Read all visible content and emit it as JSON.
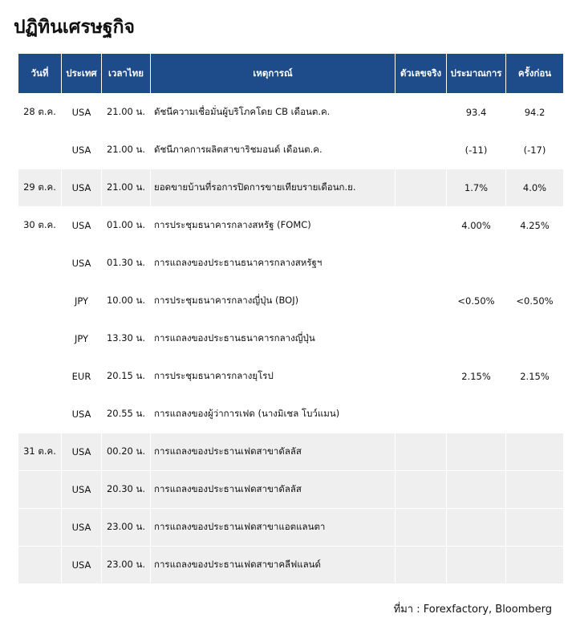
{
  "title": "ปฏิทินเศรษฐกิจ",
  "table": {
    "headers": [
      "วันที่",
      "ประเทศ",
      "เวลาไทย",
      "เหตุการณ์",
      "ตัวเลขจริง",
      "ประมาณการ",
      "ครั้งก่อน"
    ],
    "rows": [
      {
        "date": "28 ต.ค.",
        "country": "USA",
        "time": "21.00 น.",
        "event": "ดัชนีความเชื่อมั่นผู้บริโภคโดย CB เดือนต.ค.",
        "forecast": "93.4",
        "previous": "94.2"
      },
      {
        "country": "USA",
        "time": "21.00 น.",
        "event": "ดัชนีภาคการผลิตสาขาริชมอนด์ เดือนต.ค.",
        "forecast": "(-11)",
        "previous": "(-17)"
      },
      {
        "date": "29 ต.ค.",
        "country": "USA",
        "time": "21.00 น.",
        "event": "ยอดขายบ้านที่รอการปิดการขายเทียบรายเดือนก.ย.",
        "forecast": "1.7%",
        "previous": "4.0%"
      },
      {
        "date": "30 ต.ค.",
        "country": "USA",
        "time": "01.00 น.",
        "event": "การประชุมธนาคารกลางสหรัฐ (FOMC)",
        "forecast": "4.00%",
        "previous": "4.25%"
      },
      {
        "country": "USA",
        "time": "01.30 น.",
        "event": "การแถลงของประธานธนาคารกลางสหรัฐฯ"
      },
      {
        "country": "JPY",
        "time": "10.00 น.",
        "event": "การประชุมธนาคารกลางญี่ปุ่น (BOJ)",
        "forecast": "<0.50%",
        "previous": "<0.50%"
      },
      {
        "country": "JPY",
        "time": "13.30 น.",
        "event": "การแถลงของประธานธนาคารกลางญี่ปุ่น"
      },
      {
        "country": "EUR",
        "time": "20.15 น.",
        "event": "การประชุมธนาคารกลางยุโรป",
        "forecast": "2.15%",
        "previous": "2.15%"
      },
      {
        "country": "USA",
        "time": "20.55 น.",
        "event": "การแถลงของผู้ว่าการเฟด (นางมิเชล โบว์แมน)"
      },
      {
        "date": "31 ต.ค.",
        "country": "USA",
        "time": "00.20 น.",
        "event": "การแถลงของประธานเฟดสาขาดัลลัส"
      },
      {
        "country": "USA",
        "time": "20.30 น.",
        "event": "การแถลงของประธานเฟดสาขาดัลลัส"
      },
      {
        "country": "USA",
        "time": "23.00 น.",
        "event": "การแถลงของประธานเฟดสาขาแอตแลนตา"
      },
      {
        "country": "USA",
        "time": "23.00 น.",
        "event": "การแถลงของประธานเฟดสาขาคลีฟแลนด์"
      }
    ]
  },
  "source": "ที่มา : Forexfactory, Bloomberg"
}
